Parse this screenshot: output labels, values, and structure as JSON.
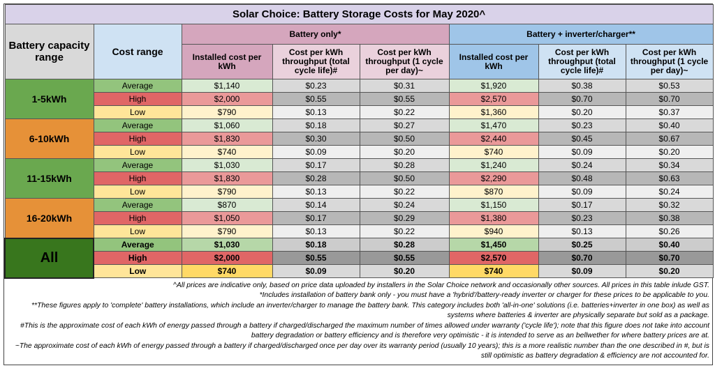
{
  "title": "Solar Choice: Battery Storage Costs for May 2020^",
  "header": {
    "capacity": "Battery capacity range",
    "cost_range": "Cost range",
    "group_battery_only": "Battery only*",
    "group_inverter": "Battery + inverter/charger**",
    "sub": [
      "Installed cost per kWh",
      "Cost per kWh throughput (total cycle life)#",
      "Cost per kWh throughput (1 cycle per day)~",
      "Installed cost per kWh",
      "Cost per kWh throughput (total cycle life)#",
      "Cost per kWh throughput (1 cycle per day)~"
    ]
  },
  "groups": [
    {
      "label": "1-5kWh",
      "rows": [
        [
          "Average",
          "$1,140",
          "$0.23",
          "$0.31",
          "$1,920",
          "$0.38",
          "$0.53"
        ],
        [
          "High",
          "$2,000",
          "$0.55",
          "$0.55",
          "$2,570",
          "$0.70",
          "$0.70"
        ],
        [
          "Low",
          "$790",
          "$0.13",
          "$0.22",
          "$1,360",
          "$0.20",
          "$0.37"
        ]
      ]
    },
    {
      "label": "6-10kWh",
      "rows": [
        [
          "Average",
          "$1,060",
          "$0.18",
          "$0.27",
          "$1,470",
          "$0.23",
          "$0.40"
        ],
        [
          "High",
          "$1,830",
          "$0.30",
          "$0.50",
          "$2,440",
          "$0.45",
          "$0.67"
        ],
        [
          "Low",
          "$740",
          "$0.09",
          "$0.20",
          "$740",
          "$0.09",
          "$0.20"
        ]
      ]
    },
    {
      "label": "11-15kWh",
      "rows": [
        [
          "Average",
          "$1,030",
          "$0.17",
          "$0.28",
          "$1,240",
          "$0.24",
          "$0.34"
        ],
        [
          "High",
          "$1,830",
          "$0.28",
          "$0.50",
          "$2,290",
          "$0.48",
          "$0.63"
        ],
        [
          "Low",
          "$790",
          "$0.13",
          "$0.22",
          "$870",
          "$0.09",
          "$0.24"
        ]
      ]
    },
    {
      "label": "16-20kWh",
      "rows": [
        [
          "Average",
          "$870",
          "$0.14",
          "$0.24",
          "$1,150",
          "$0.17",
          "$0.32"
        ],
        [
          "High",
          "$1,050",
          "$0.17",
          "$0.29",
          "$1,380",
          "$0.23",
          "$0.38"
        ],
        [
          "Low",
          "$790",
          "$0.13",
          "$0.22",
          "$940",
          "$0.13",
          "$0.26"
        ]
      ]
    },
    {
      "label": "All",
      "rows": [
        [
          "Average",
          "$1,030",
          "$0.18",
          "$0.28",
          "$1,450",
          "$0.25",
          "$0.40"
        ],
        [
          "High",
          "$2,000",
          "$0.55",
          "$0.55",
          "$2,570",
          "$0.70",
          "$0.70"
        ],
        [
          "Low",
          "$740",
          "$0.09",
          "$0.20",
          "$740",
          "$0.09",
          "$0.20"
        ]
      ]
    }
  ],
  "notes": [
    "^All prices are indicative only, based on price data uploaded by installers in the Solar Choice network and occasionally other sources. All prices in this table inlude GST.",
    "*Includes installation of battery bank only - you must have a 'hybrid'/battery-ready inverter or charger for these prices to be applicable to you.",
    "**These figures apply to 'complete' battery installations, which include an inverter/charger to manage the battery bank. This category includes both 'all-in-one' solutions (i.e. batteries+inverter in one box) as well as systems where batteries & inverter are physically separate but sold as a package.",
    "#This is the approximate cost of each kWh of energy passed through a battery if charged/discharged the maximum number of times allowed under warranty ('cycle life'); note that this figure does not take into account battery degradation or battery efficiency and is therefore very optimistic - it is intended to serve as an bellwether for where battery prices are at.",
    "~The approximate cost of each kWh of energy passed through a battery if charged/discharged once per day over its warranty period (usually 10 years); this is a more realistic number than the one described in #, but is still optimistic as battery degradation & efficiency are not accounted for."
  ]
}
